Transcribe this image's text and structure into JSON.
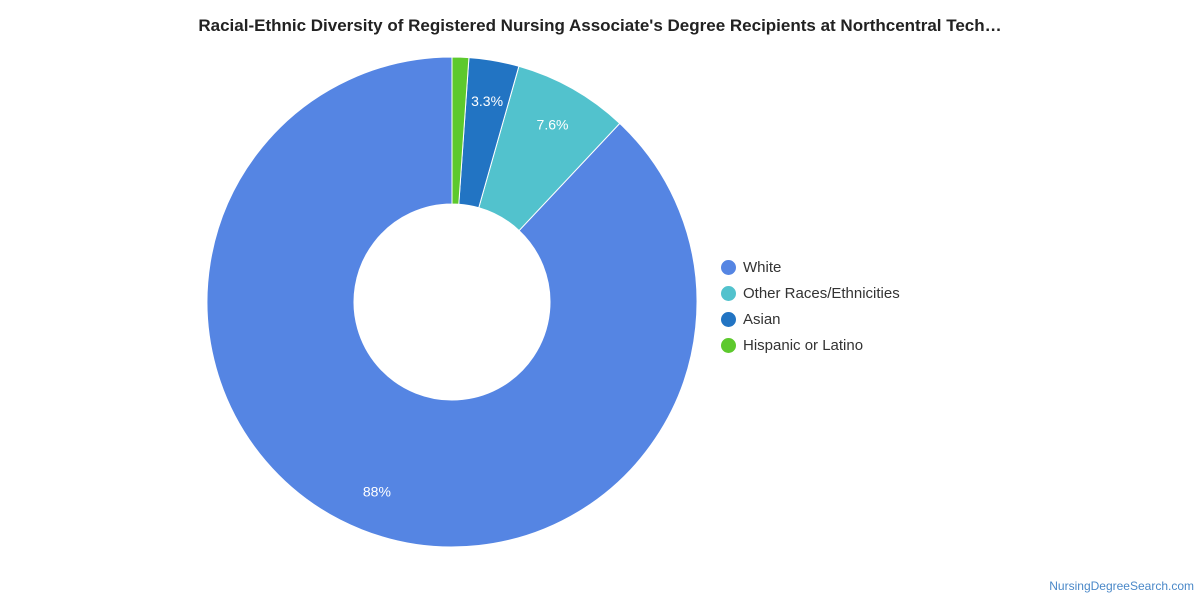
{
  "chart_data": {
    "type": "pie",
    "title": "Racial-Ethnic Diversity of Registered Nursing Associate's Degree Recipients at Northcentral Tech…",
    "donut": true,
    "legend_position": "right",
    "slices": [
      {
        "label": "White",
        "value": 88,
        "display": "88%",
        "color": "#5585e3"
      },
      {
        "label": "Other Races/Ethnicities",
        "value": 7.6,
        "display": "7.6%",
        "color": "#52c2cd"
      },
      {
        "label": "Asian",
        "value": 3.3,
        "display": "3.3%",
        "color": "#2274c3"
      },
      {
        "label": "Hispanic or Latino",
        "value": 1.1,
        "display": "",
        "color": "#5dc92d"
      }
    ]
  },
  "watermark": "NursingDegreeSearch.com"
}
